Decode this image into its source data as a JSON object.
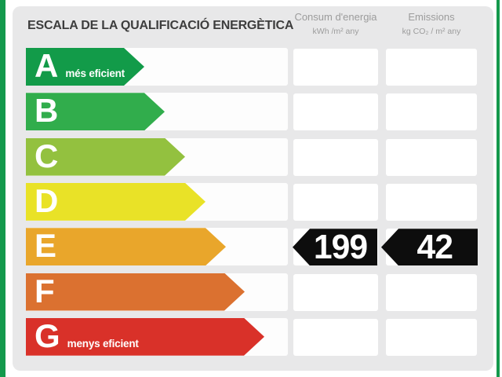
{
  "title": "ESCALA DE LA QUALIFICACIÓ ENERGÈTICA",
  "columns": {
    "consumption": {
      "label": "Consum d'energia",
      "units": "kWh /m²  any"
    },
    "emissions": {
      "label": "Emissions",
      "units": "kg CO₂ / m²  any"
    }
  },
  "scale": {
    "rows": [
      {
        "letter": "A",
        "note": "més eficient",
        "color": "#129b49",
        "arrow_width": 151
      },
      {
        "letter": "B",
        "note": "",
        "color": "#31ad4c",
        "arrow_width": 177
      },
      {
        "letter": "C",
        "note": "",
        "color": "#93c13f",
        "arrow_width": 203
      },
      {
        "letter": "D",
        "note": "",
        "color": "#e9e227",
        "arrow_width": 229
      },
      {
        "letter": "E",
        "note": "",
        "color": "#e9a62b",
        "arrow_width": 255
      },
      {
        "letter": "F",
        "note": "",
        "color": "#db7130",
        "arrow_width": 279
      },
      {
        "letter": "G",
        "note": "menys eficient",
        "color": "#d93129",
        "arrow_width": 304
      }
    ]
  },
  "rating": {
    "letter": "E",
    "consumption_value": "199",
    "emissions_value": "42",
    "indicator_color": "#0d0d0d",
    "value_text_color": "#ffffff"
  },
  "frame": {
    "stripe_color": "#14994c",
    "panel_color": "#e8e8e9"
  },
  "chart_data": {
    "type": "bar",
    "title": "ESCALA DE LA QUALIFICACIÓ ENERGÈTICA",
    "categories": [
      "A",
      "B",
      "C",
      "D",
      "E",
      "F",
      "G"
    ],
    "category_notes": {
      "A": "més eficient",
      "G": "menys eficient"
    },
    "bar_colors": [
      "#129b49",
      "#31ad4c",
      "#93c13f",
      "#e9e227",
      "#e9a62b",
      "#db7130",
      "#d93129"
    ],
    "series": [
      {
        "name": "Consum d'energia (kWh/m² any)",
        "values": [
          null,
          null,
          null,
          null,
          199,
          null,
          null
        ]
      },
      {
        "name": "Emissions (kg CO₂/m² any)",
        "values": [
          null,
          null,
          null,
          null,
          42,
          null,
          null
        ]
      }
    ],
    "rating": "E",
    "legend_position": "none",
    "grid": false
  }
}
